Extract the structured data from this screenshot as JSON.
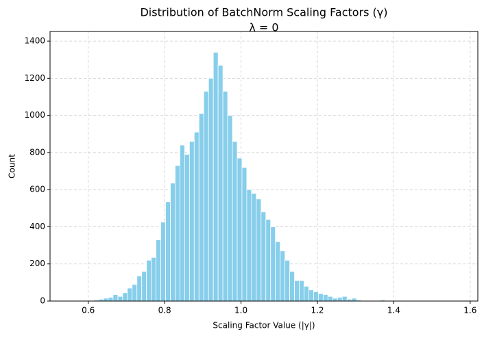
{
  "chart_data": {
    "type": "histogram",
    "title": "Distribution of BatchNorm Scaling Factors (γ)",
    "subtitle": "λ = 0",
    "x_label": "Scaling Factor Value (|γ|)",
    "y_label": "Count",
    "color": "#87ceeb",
    "edgecolor": "#ffffff",
    "grid": true,
    "bins": [
      0.5525,
      0.565,
      0.5775,
      0.59,
      0.6025,
      0.615,
      0.6275,
      0.64,
      0.6525,
      0.665,
      0.6775,
      0.69,
      0.7025,
      0.715,
      0.7275,
      0.74,
      0.7525,
      0.765,
      0.7775,
      0.79,
      0.8025,
      0.815,
      0.8275,
      0.84,
      0.8525,
      0.865,
      0.8775,
      0.89,
      0.9025,
      0.915,
      0.9275,
      0.94,
      0.9525,
      0.965,
      0.9775,
      0.99,
      1.0025,
      1.015,
      1.0275,
      1.04,
      1.0525,
      1.065,
      1.0775,
      1.09,
      1.1025,
      1.115,
      1.1275,
      1.14,
      1.1525,
      1.165,
      1.1775,
      1.19,
      1.2025,
      1.215,
      1.2275,
      1.24,
      1.2525,
      1.265,
      1.2775,
      1.29,
      1.3025,
      1.315,
      1.3275,
      1.34,
      1.3525,
      1.365,
      1.3775,
      1.39,
      1.4025,
      1.415,
      1.4275,
      1.44,
      1.4525,
      1.465,
      1.4775,
      1.49,
      1.5025,
      1.515,
      1.5275,
      1.54,
      1.5525,
      1.565
    ],
    "values": [
      1,
      0,
      2,
      3,
      2,
      5,
      10,
      15,
      20,
      35,
      25,
      45,
      70,
      90,
      135,
      160,
      220,
      235,
      330,
      425,
      535,
      635,
      730,
      840,
      790,
      860,
      910,
      1010,
      1130,
      1200,
      1340,
      1270,
      1130,
      1000,
      860,
      770,
      720,
      600,
      580,
      550,
      480,
      440,
      400,
      320,
      270,
      220,
      160,
      110,
      110,
      80,
      60,
      50,
      40,
      35,
      25,
      15,
      20,
      25,
      10,
      15,
      5,
      3,
      2,
      3,
      2,
      5,
      1,
      2,
      1,
      0,
      1,
      0,
      0,
      1,
      0,
      0,
      0,
      0,
      0,
      0,
      1
    ],
    "xlim": [
      0.5,
      1.62
    ],
    "ylim": [
      0,
      1452
    ],
    "xticks": [
      0.6,
      0.8,
      {
        "value": 1,
        "label": "1.0"
      },
      1.2,
      1.4,
      1.6
    ],
    "yticks": [
      0,
      200,
      400,
      600,
      800,
      1000,
      1200,
      1400
    ]
  }
}
